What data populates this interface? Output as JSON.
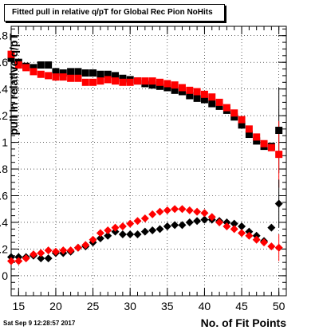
{
  "chart_data": {
    "type": "scatter",
    "title": "Fitted pull in relative q/pT for Global Rec Pion NoHits",
    "xlabel": "No. of Fit Points",
    "ylabel": "pull in relative q/pT",
    "xlim": [
      14,
      51
    ],
    "ylim": [
      -0.15,
      1.87
    ],
    "xticks": [
      15,
      20,
      25,
      30,
      35,
      40,
      45,
      50
    ],
    "yticks": [
      0,
      0.2,
      0.4,
      0.6,
      0.8,
      1,
      1.2,
      1.4,
      1.6,
      1.8
    ],
    "ytick_labels": [
      "0",
      "0.2",
      "0.4",
      "0.6",
      "0.8",
      "1",
      "1.2",
      "1.4",
      "1.6",
      "1.8"
    ],
    "grid": true,
    "series": [
      {
        "marker": "square",
        "color": "#000000",
        "x": [
          14,
          15,
          16,
          17,
          18,
          19,
          20,
          21,
          22,
          23,
          24,
          25,
          26,
          27,
          28,
          29,
          30,
          31,
          32,
          33,
          34,
          35,
          36,
          37,
          38,
          39,
          40,
          41,
          42,
          43,
          44,
          45,
          46,
          47,
          48,
          49,
          50
        ],
        "y": [
          1.63,
          1.6,
          1.57,
          1.56,
          1.58,
          1.58,
          1.53,
          1.52,
          1.53,
          1.53,
          1.52,
          1.52,
          1.51,
          1.51,
          1.5,
          1.48,
          1.47,
          1.46,
          1.44,
          1.43,
          1.42,
          1.41,
          1.39,
          1.38,
          1.35,
          1.33,
          1.32,
          1.29,
          1.27,
          1.24,
          1.19,
          1.13,
          1.06,
          1.01,
          0.97,
          0.97,
          1.09
        ]
      },
      {
        "marker": "square",
        "color": "#ff0000",
        "x": [
          14,
          15,
          16,
          17,
          18,
          19,
          20,
          21,
          22,
          23,
          24,
          25,
          26,
          27,
          28,
          29,
          30,
          31,
          32,
          33,
          34,
          35,
          36,
          37,
          38,
          39,
          40,
          41,
          42,
          43,
          44,
          45,
          46,
          47,
          48,
          49,
          50
        ],
        "y": [
          1.66,
          1.58,
          1.56,
          1.53,
          1.51,
          1.5,
          1.49,
          1.49,
          1.48,
          1.48,
          1.45,
          1.45,
          1.46,
          1.47,
          1.46,
          1.45,
          1.45,
          1.46,
          1.46,
          1.46,
          1.45,
          1.44,
          1.43,
          1.41,
          1.39,
          1.38,
          1.36,
          1.34,
          1.3,
          1.26,
          1.22,
          1.17,
          1.1,
          1.04,
          0.99,
          0.96,
          0.91
        ]
      },
      {
        "marker": "diamond",
        "color": "#000000",
        "x": [
          14,
          15,
          16,
          17,
          18,
          19,
          20,
          21,
          22,
          23,
          24,
          25,
          26,
          27,
          28,
          29,
          30,
          31,
          32,
          33,
          34,
          35,
          36,
          37,
          38,
          39,
          40,
          41,
          42,
          43,
          44,
          45,
          46,
          47,
          48,
          49,
          50
        ],
        "y": [
          0.14,
          0.14,
          0.14,
          0.15,
          0.13,
          0.13,
          0.17,
          0.17,
          0.18,
          0.21,
          0.22,
          0.25,
          0.28,
          0.3,
          0.33,
          0.31,
          0.31,
          0.31,
          0.33,
          0.34,
          0.35,
          0.37,
          0.38,
          0.38,
          0.4,
          0.41,
          0.42,
          0.42,
          0.41,
          0.4,
          0.39,
          0.37,
          0.33,
          0.3,
          0.26,
          0.36,
          0.54
        ]
      },
      {
        "marker": "diamond",
        "color": "#ff0000",
        "x": [
          14,
          15,
          16,
          17,
          18,
          19,
          20,
          21,
          22,
          23,
          24,
          25,
          26,
          27,
          28,
          29,
          30,
          31,
          32,
          33,
          34,
          35,
          36,
          37,
          38,
          39,
          40,
          41,
          42,
          43,
          44,
          45,
          46,
          47,
          48,
          49,
          50
        ],
        "y": [
          0.11,
          0.11,
          0.13,
          0.16,
          0.17,
          0.19,
          0.18,
          0.19,
          0.19,
          0.21,
          0.23,
          0.27,
          0.32,
          0.34,
          0.36,
          0.37,
          0.39,
          0.41,
          0.43,
          0.46,
          0.48,
          0.49,
          0.5,
          0.5,
          0.49,
          0.48,
          0.47,
          0.44,
          0.4,
          0.37,
          0.35,
          0.32,
          0.3,
          0.27,
          0.25,
          0.22,
          0.21
        ]
      }
    ]
  },
  "footer": {
    "timestamp": "Sat Sep  9 12:28:57 2017"
  },
  "colors": {
    "black": "#000000",
    "red": "#ff0000",
    "background": "#ffffff"
  }
}
